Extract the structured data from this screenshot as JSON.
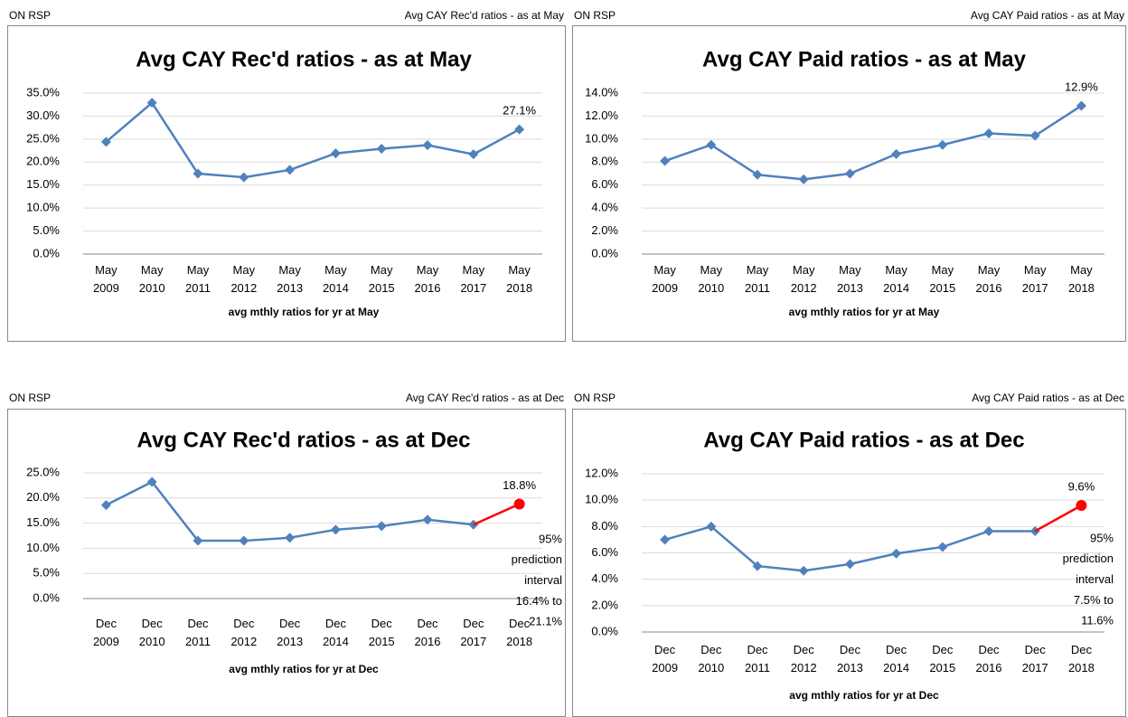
{
  "chart_data": [
    {
      "type": "line",
      "header_left": "ON RSP",
      "header_right": "Avg CAY Rec'd ratios - as at May",
      "title": "Avg CAY Rec'd ratios - as at May",
      "x_label": "avg mthly ratios for yr at May",
      "categories": [
        "May 2009",
        "May 2010",
        "May 2011",
        "May 2012",
        "May 2013",
        "May 2014",
        "May 2015",
        "May 2016",
        "May 2017",
        "May 2018"
      ],
      "series": [
        {
          "color": "#4f81bd",
          "values": [
            24.4,
            32.9,
            17.5,
            16.7,
            18.3,
            21.9,
            22.9,
            23.7,
            21.7,
            27.1
          ],
          "value_labels": [
            null,
            null,
            null,
            null,
            null,
            null,
            null,
            null,
            null,
            "27.1%"
          ]
        }
      ],
      "ylim": [
        0,
        35
      ],
      "yticks": [
        {
          "value": 0,
          "label": "0.0%"
        },
        {
          "value": 5,
          "label": "5.0%"
        },
        {
          "value": 10,
          "label": "10.0%"
        },
        {
          "value": 15,
          "label": "15.0%"
        },
        {
          "value": 20,
          "label": "20.0%"
        },
        {
          "value": 25,
          "label": "25.0%"
        },
        {
          "value": 30,
          "label": "30.0%"
        },
        {
          "value": 35,
          "label": "35.0%"
        }
      ],
      "grid": true
    },
    {
      "type": "line",
      "header_left": "ON RSP",
      "header_right": "Avg CAY Paid ratios - as at May",
      "title": "Avg CAY Paid ratios - as at May",
      "x_label": "avg mthly ratios for yr at May",
      "categories": [
        "May 2009",
        "May 2010",
        "May 2011",
        "May 2012",
        "May 2013",
        "May 2014",
        "May 2015",
        "May 2016",
        "May 2017",
        "May 2018"
      ],
      "series": [
        {
          "color": "#4f81bd",
          "values": [
            8.1,
            9.5,
            6.9,
            6.5,
            7.0,
            8.7,
            9.5,
            10.5,
            10.3,
            12.9
          ],
          "value_labels": [
            null,
            null,
            null,
            null,
            null,
            null,
            null,
            null,
            null,
            "12.9%"
          ]
        }
      ],
      "ylim": [
        0,
        14
      ],
      "yticks": [
        {
          "value": 0,
          "label": "0.0%"
        },
        {
          "value": 2,
          "label": "2.0%"
        },
        {
          "value": 4,
          "label": "4.0%"
        },
        {
          "value": 6,
          "label": "6.0%"
        },
        {
          "value": 8,
          "label": "8.0%"
        },
        {
          "value": 10,
          "label": "10.0%"
        },
        {
          "value": 12,
          "label": "12.0%"
        },
        {
          "value": 14,
          "label": "14.0%"
        }
      ],
      "grid": true
    },
    {
      "type": "line",
      "header_left": "ON RSP",
      "header_right": "Avg CAY Rec'd ratios - as at Dec",
      "title": "Avg CAY Rec'd ratios - as at Dec",
      "x_label": "avg mthly ratios for yr at Dec",
      "categories": [
        "Dec 2009",
        "Dec 2010",
        "Dec 2011",
        "Dec 2012",
        "Dec 2013",
        "Dec 2014",
        "Dec 2015",
        "Dec 2016",
        "Dec 2017",
        "Dec 2018"
      ],
      "series": [
        {
          "color": "#4f81bd",
          "values": [
            18.6,
            23.2,
            11.5,
            11.5,
            12.1,
            13.7,
            14.4,
            15.7,
            14.7,
            null
          ]
        },
        {
          "color": "#ff0000",
          "values": [
            null,
            null,
            null,
            null,
            null,
            null,
            null,
            null,
            null,
            18.8
          ],
          "value_labels": [
            null,
            null,
            null,
            null,
            null,
            null,
            null,
            null,
            null,
            "18.8%"
          ]
        }
      ],
      "annotation": [
        "95%",
        "prediction",
        "interval",
        "16.4% to",
        "21.1%"
      ],
      "ylim": [
        0,
        25
      ],
      "yticks": [
        {
          "value": 0,
          "label": "0.0%"
        },
        {
          "value": 5,
          "label": "5.0%"
        },
        {
          "value": 10,
          "label": "10.0%"
        },
        {
          "value": 15,
          "label": "15.0%"
        },
        {
          "value": 20,
          "label": "20.0%"
        },
        {
          "value": 25,
          "label": "25.0%"
        }
      ],
      "grid": true
    },
    {
      "type": "line",
      "header_left": "ON RSP",
      "header_right": "Avg CAY Paid ratios - as at Dec",
      "title": "Avg CAY Paid ratios - as at Dec",
      "x_label": "avg mthly ratios for yr at Dec",
      "categories": [
        "Dec 2009",
        "Dec 2010",
        "Dec 2011",
        "Dec 2012",
        "Dec 2013",
        "Dec 2014",
        "Dec 2015",
        "Dec 2016",
        "Dec 2017",
        "Dec 2018"
      ],
      "series": [
        {
          "color": "#4f81bd",
          "values": [
            7.0,
            8.0,
            5.0,
            4.65,
            5.15,
            5.95,
            6.45,
            7.65,
            7.65,
            null
          ]
        },
        {
          "color": "#ff0000",
          "values": [
            null,
            null,
            null,
            null,
            null,
            null,
            null,
            null,
            null,
            9.6
          ],
          "value_labels": [
            null,
            null,
            null,
            null,
            null,
            null,
            null,
            null,
            null,
            "9.6%"
          ]
        }
      ],
      "annotation": [
        "95%",
        "prediction",
        "interval",
        "7.5% to",
        "11.6%"
      ],
      "ylim": [
        0,
        12
      ],
      "yticks": [
        {
          "value": 0,
          "label": "0.0%"
        },
        {
          "value": 2,
          "label": "2.0%"
        },
        {
          "value": 4,
          "label": "4.0%"
        },
        {
          "value": 6,
          "label": "6.0%"
        },
        {
          "value": 8,
          "label": "8.0%"
        },
        {
          "value": 10,
          "label": "10.0%"
        },
        {
          "value": 12,
          "label": "12.0%"
        }
      ],
      "grid": true
    }
  ]
}
